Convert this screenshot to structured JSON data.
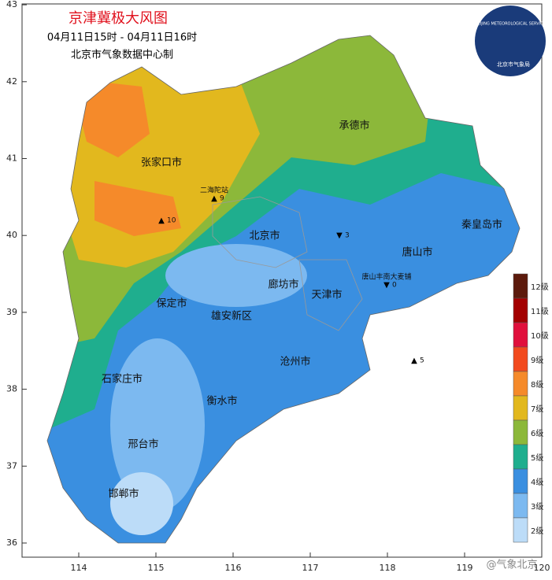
{
  "map": {
    "title": "京津冀极大风图",
    "subtitle": "04月11日15时 - 04月11日16时",
    "credit": "北京市气象数据中心制",
    "logo": {
      "ring": "BEIJING METEOROLOGICAL SERVICE",
      "name": "北京市气象局"
    },
    "watermark": "@气象北京",
    "lat_ticks": [
      36,
      37,
      38,
      39,
      40,
      41,
      42,
      43
    ],
    "lon_ticks": [
      114,
      115,
      116,
      117,
      118,
      119,
      120
    ],
    "legend": [
      {
        "label": "12级",
        "color": "#5c1a0c"
      },
      {
        "label": "11级",
        "color": "#a30000"
      },
      {
        "label": "10级",
        "color": "#e0103c"
      },
      {
        "label": "9级",
        "color": "#f24a1e"
      },
      {
        "label": "8级",
        "color": "#f58a2a"
      },
      {
        "label": "7级",
        "color": "#e2b81e"
      },
      {
        "label": "6级",
        "color": "#8cb83a"
      },
      {
        "label": "5级",
        "color": "#1fae8e"
      },
      {
        "label": "4级",
        "color": "#3a8fe0"
      },
      {
        "label": "3级",
        "color": "#7cb9f0"
      },
      {
        "label": "2级",
        "color": "#bcdcf8"
      }
    ],
    "cities": [
      "张家口市",
      "承德市",
      "北京市",
      "唐山市",
      "秦皇岛市",
      "廊坊市",
      "天津市",
      "保定市",
      "雄安新区",
      "沧州市",
      "石家庄市",
      "衡水市",
      "邢台市",
      "邯郸市"
    ],
    "stations": [
      {
        "label": "二海陀站",
        "value": 9
      },
      {
        "label": "唐山丰南大麦铺",
        "value": 0
      },
      {
        "value": 10
      },
      {
        "value": 3
      },
      {
        "value": 5
      }
    ]
  }
}
